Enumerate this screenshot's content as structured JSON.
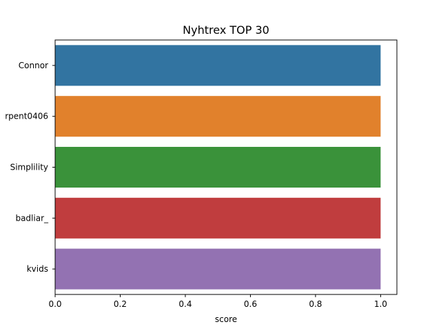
{
  "chart_data": {
    "type": "bar",
    "orientation": "horizontal",
    "title": "Nyhtrex TOP 30",
    "xlabel": "score",
    "ylabel": "",
    "categories": [
      "Connor",
      "rpent0406",
      "Simplility",
      "badliar_",
      "kvids"
    ],
    "values": [
      1.0,
      1.0,
      1.0,
      1.0,
      1.0
    ],
    "colors": [
      "#3274a1",
      "#e1812c",
      "#3a923a",
      "#c03d3e",
      "#9372b2"
    ],
    "xlim": [
      0,
      1.05
    ],
    "xticks": [
      0.0,
      0.2,
      0.4,
      0.6,
      0.8,
      1.0
    ],
    "xtick_labels": [
      "0.0",
      "0.2",
      "0.4",
      "0.6",
      "0.8",
      "1.0"
    ],
    "grid": false,
    "legend": "none"
  }
}
